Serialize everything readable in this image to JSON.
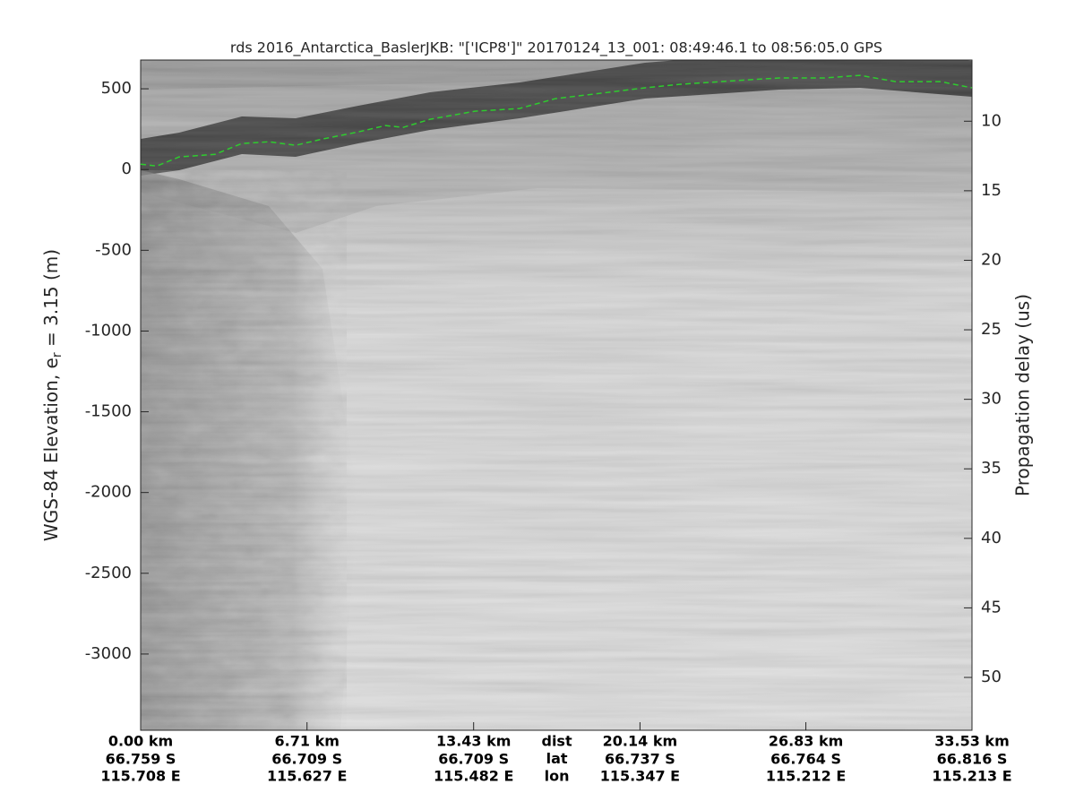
{
  "chart_data": {
    "type": "line",
    "title": "rds 2016_Antarctica_BaslerJKB: \"['ICP8']\"  20170124_13_001: 08:49:46.1 to 08:56:05.0 GPS",
    "ylabel": "WGS-84 Elevation, e",
    "ylabel_sub": "r",
    "ylabel_end": " = 3.15 (m)",
    "y2label": "Propagation delay (us)",
    "x": [
      0,
      0.65,
      1.55,
      3.0,
      4.08,
      5.17,
      6.25,
      7.34,
      8.78,
      9.87,
      10.59,
      11.67,
      13.48,
      15.28,
      16.73,
      18.53,
      20.34,
      21.78,
      23.95,
      25.76,
      27.57,
      29.02,
      30.46,
      32.27,
      33.53
    ],
    "series": [
      {
        "color": "#2ecc2e",
        "values": [
          33,
          22,
          78,
          94,
          161,
          172,
          150,
          189,
          233,
          272,
          261,
          311,
          361,
          378,
          439,
          472,
          506,
          528,
          550,
          567,
          567,
          583,
          544,
          544,
          506
        ]
      }
    ],
    "xlim": [
      0,
      33.53
    ],
    "ylim": [
      -3472,
      678
    ],
    "yticks": [
      -3000,
      -2500,
      -2000,
      -1500,
      -1000,
      -500,
      0,
      500
    ],
    "y2lim": [
      53.8,
      5.6
    ],
    "y2ticks": [
      10,
      15,
      20,
      25,
      30,
      35,
      40,
      45,
      50
    ],
    "xticks": [
      {
        "value": 0,
        "label": "0.00 km"
      },
      {
        "value": 6.71,
        "label": "6.71 km"
      },
      {
        "value": 13.43,
        "label": "13.43 km"
      },
      {
        "value": 20.14,
        "label": "20.14 km"
      },
      {
        "value": 26.83,
        "label": "26.83 km"
      },
      {
        "value": 33.53,
        "label": "33.53 km"
      }
    ],
    "lat_labels": [
      "66.759 S",
      "66.709 S",
      "66.709 S",
      "66.737 S",
      "66.764 S",
      "66.816 S"
    ],
    "lon_labels": [
      "115.708 E",
      "115.627 E",
      "115.482 E",
      "115.347 E",
      "115.212 E",
      "115.213 E"
    ],
    "row_labels": [
      "dist",
      "lat",
      "lon"
    ]
  }
}
